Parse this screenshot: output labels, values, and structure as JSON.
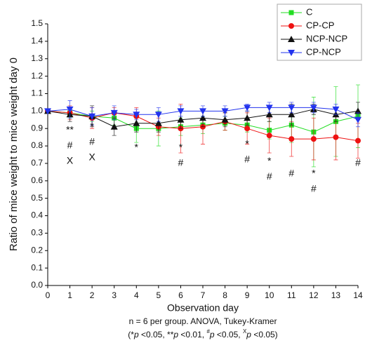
{
  "chart_data": {
    "type": "line",
    "x_label": "Observation day",
    "y_label": "Ratio of mice weight to mice weight day 0",
    "x": [
      0,
      1,
      2,
      3,
      4,
      5,
      6,
      7,
      8,
      9,
      10,
      11,
      12,
      13,
      14
    ],
    "xlim": [
      0,
      14
    ],
    "xticks": [
      0,
      1,
      2,
      3,
      4,
      5,
      6,
      7,
      8,
      9,
      10,
      11,
      12,
      13,
      14
    ],
    "ylim": [
      0,
      1.5
    ],
    "yticks": [
      {
        "value": 0,
        "label": "0.0"
      },
      0.1,
      0.2,
      0.3,
      0.4,
      0.5,
      0.6,
      0.7,
      0.8,
      0.9,
      {
        "value": 1,
        "label": "1.0"
      },
      1.1,
      1.2,
      1.3,
      1.4,
      1.5
    ],
    "legend": "upper right",
    "series": [
      {
        "name": "C",
        "color": "#22dd22",
        "marker": "square",
        "values": [
          1.0,
          0.99,
          0.97,
          0.96,
          0.9,
          0.9,
          0.91,
          0.92,
          0.93,
          0.92,
          0.89,
          0.92,
          0.88,
          0.94,
          0.97
        ],
        "errors": [
          0,
          0.03,
          0.03,
          0.04,
          0.08,
          0.1,
          0.05,
          0.05,
          0.04,
          0.04,
          0.05,
          0.1,
          0.2,
          0.2,
          0.18
        ]
      },
      {
        "name": "CP-CP",
        "color": "#ee1111",
        "marker": "circle",
        "values": [
          1.0,
          0.99,
          0.96,
          0.99,
          0.97,
          0.91,
          0.9,
          0.91,
          0.94,
          0.9,
          0.86,
          0.84,
          0.84,
          0.85,
          0.83
        ],
        "errors": [
          0,
          0.04,
          0.06,
          0.03,
          0.05,
          0.05,
          0.14,
          0.1,
          0.05,
          0.09,
          0.1,
          0.1,
          0.12,
          0.13,
          0.1
        ]
      },
      {
        "name": "NCP-NCP",
        "color": "#111111",
        "marker": "triangle-up",
        "values": [
          1.0,
          0.98,
          0.97,
          0.91,
          0.93,
          0.93,
          0.95,
          0.96,
          0.95,
          0.96,
          0.98,
          0.98,
          1.01,
          0.98,
          1.0
        ],
        "errors": [
          0,
          0.04,
          0.06,
          0.05,
          0.05,
          0.05,
          0.05,
          0.05,
          0.04,
          0.04,
          0.04,
          0.06,
          0.03,
          0.04,
          0.05
        ]
      },
      {
        "name": "CP-NCP",
        "color": "#2233ee",
        "marker": "triangle-down",
        "values": [
          1.0,
          1.01,
          0.97,
          0.99,
          0.98,
          0.98,
          1.0,
          1.0,
          1.0,
          1.02,
          1.02,
          1.02,
          1.02,
          1.01,
          0.95
        ],
        "errors": [
          0,
          0.05,
          0.05,
          0.04,
          0.03,
          0.04,
          0.03,
          0.03,
          0.03,
          0.02,
          0.03,
          0.03,
          0.03,
          0.03,
          0.04
        ]
      }
    ],
    "annotations": [
      {
        "x": 1,
        "y": 0.89,
        "texts": [
          "**",
          "#",
          "X"
        ]
      },
      {
        "x": 2,
        "y": 0.91,
        "texts": [
          "*",
          "#",
          "X"
        ]
      },
      {
        "x": 4,
        "y": 0.79,
        "texts": [
          "*"
        ]
      },
      {
        "x": 6,
        "y": 0.79,
        "texts": [
          "*",
          "#"
        ]
      },
      {
        "x": 9,
        "y": 0.81,
        "texts": [
          "*",
          "#"
        ]
      },
      {
        "x": 10,
        "y": 0.71,
        "texts": [
          "*",
          "#"
        ]
      },
      {
        "x": 11,
        "y": 0.64,
        "texts": [
          "#"
        ]
      },
      {
        "x": 12,
        "y": 0.64,
        "texts": [
          "*",
          "#"
        ]
      },
      {
        "x": 14,
        "y": 0.7,
        "texts": [
          "#"
        ]
      }
    ],
    "footnote": "n = 6  per group. ANOVA, Tukey-Kramer",
    "footnote2": [
      "(*",
      "p",
      " <0.05, **",
      "p",
      " <0.01, ",
      "#",
      "p",
      " <0.05, ",
      "X",
      "p",
      " <0.05)"
    ]
  }
}
